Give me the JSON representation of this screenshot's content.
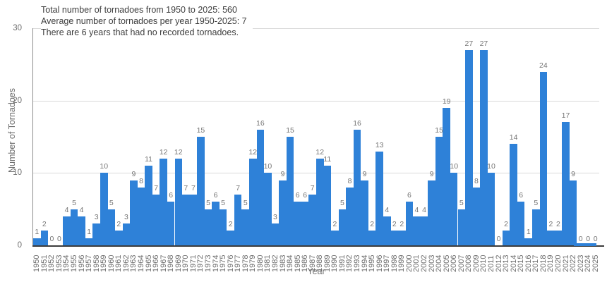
{
  "summary": {
    "line1": "Total number of tornadoes from 1950 to 2025: 560",
    "line2": "Average number of tornadoes per year 1950-2025: 7",
    "line3": "There are 6 years that had no recorded tornadoes."
  },
  "chart_data": {
    "type": "bar",
    "title": "",
    "xlabel": "Year",
    "ylabel": "Number of Tornadoes",
    "ylim": [
      0,
      30
    ],
    "yticks": [
      0,
      10,
      20,
      30
    ],
    "grid": true,
    "legend_position": "none",
    "bar_color": "#2e81d8",
    "gridline_color": "#dadada",
    "axis_line_color": "#3c3c3c",
    "label_color": "#757575",
    "value_labels_shown": true,
    "categories": [
      "1950",
      "1951",
      "1952",
      "1953",
      "1954",
      "1955",
      "1956",
      "1957",
      "1958",
      "1959",
      "1960",
      "1961",
      "1962",
      "1963",
      "1964",
      "1965",
      "1966",
      "1967",
      "1968",
      "1969",
      "1970",
      "1971",
      "1972",
      "1973",
      "1974",
      "1975",
      "1976",
      "1977",
      "1978",
      "1979",
      "1980",
      "1981",
      "1982",
      "1983",
      "1984",
      "1985",
      "1986",
      "1987",
      "1988",
      "1989",
      "1990",
      "1991",
      "1992",
      "1993",
      "1994",
      "1995",
      "1996",
      "1997",
      "1998",
      "1999",
      "2000",
      "2001",
      "2002",
      "2003",
      "2004",
      "2005",
      "2006",
      "2007",
      "2008",
      "2009",
      "2010",
      "2011",
      "2012",
      "2013",
      "2014",
      "2015",
      "2016",
      "2017",
      "2018",
      "2019",
      "2020",
      "2021",
      "2022",
      "2023",
      "2024",
      "2025"
    ],
    "values": [
      1,
      2,
      0,
      0,
      4,
      5,
      4,
      1,
      3,
      10,
      5,
      2,
      3,
      9,
      8,
      11,
      7,
      12,
      6,
      12,
      7,
      7,
      15,
      5,
      6,
      5,
      2,
      7,
      5,
      12,
      16,
      10,
      3,
      9,
      15,
      6,
      6,
      7,
      12,
      11,
      2,
      5,
      8,
      16,
      9,
      2,
      13,
      4,
      2,
      2,
      6,
      4,
      4,
      9,
      15,
      19,
      10,
      5,
      27,
      8,
      27,
      10,
      0,
      2,
      14,
      6,
      1,
      5,
      24,
      2,
      2,
      17,
      9,
      0,
      0,
      0
    ],
    "trailing_zero_stub_years": [
      "2023",
      "2024",
      "2025"
    ]
  }
}
